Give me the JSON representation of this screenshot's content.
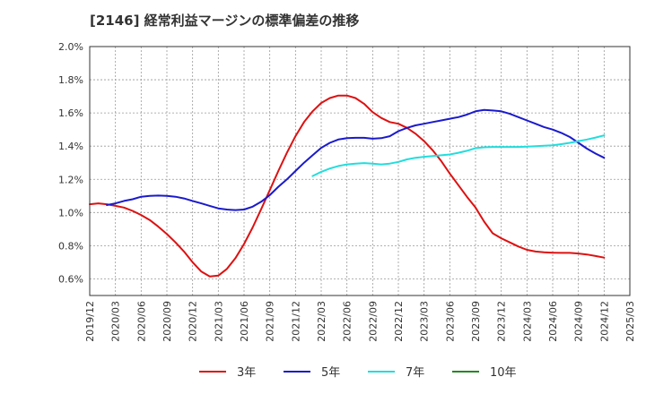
{
  "chart_data": {
    "type": "line",
    "title": "[2146]  経常利益マージンの標準偏差の推移",
    "xlabel": "",
    "ylabel": "",
    "ylim": [
      0.5,
      2.0
    ],
    "y_ticks": [
      "2.0%",
      "1.8%",
      "1.6%",
      "1.4%",
      "1.2%",
      "1.0%",
      "0.8%",
      "0.6%"
    ],
    "y_tick_values": [
      2.0,
      1.8,
      1.6,
      1.4,
      1.2,
      1.0,
      0.8,
      0.6
    ],
    "x_ticks": [
      "2019/12",
      "2020/03",
      "2020/06",
      "2020/09",
      "2020/12",
      "2021/03",
      "2021/06",
      "2021/09",
      "2021/12",
      "2022/03",
      "2022/06",
      "2022/09",
      "2022/12",
      "2023/03",
      "2023/06",
      "2023/09",
      "2023/12",
      "2024/03",
      "2024/06",
      "2024/09",
      "2024/12",
      "2025/03"
    ],
    "grid": true,
    "legend_position": "bottom",
    "series": [
      {
        "name": "3年",
        "color": "#dd1111",
        "points": [
          [
            "2019/12",
            1.05
          ],
          [
            "2020/01",
            1.055
          ],
          [
            "2020/02",
            1.05
          ],
          [
            "2020/03",
            1.04
          ],
          [
            "2020/04",
            1.03
          ],
          [
            "2020/05",
            1.01
          ],
          [
            "2020/06",
            0.985
          ],
          [
            "2020/07",
            0.955
          ],
          [
            "2020/08",
            0.915
          ],
          [
            "2020/09",
            0.87
          ],
          [
            "2020/10",
            0.82
          ],
          [
            "2020/11",
            0.765
          ],
          [
            "2020/12",
            0.7
          ],
          [
            "2021/01",
            0.645
          ],
          [
            "2021/02",
            0.615
          ],
          [
            "2021/03",
            0.62
          ],
          [
            "2021/04",
            0.66
          ],
          [
            "2021/05",
            0.725
          ],
          [
            "2021/06",
            0.81
          ],
          [
            "2021/07",
            0.91
          ],
          [
            "2021/08",
            1.02
          ],
          [
            "2021/09",
            1.135
          ],
          [
            "2021/10",
            1.25
          ],
          [
            "2021/11",
            1.36
          ],
          [
            "2021/12",
            1.46
          ],
          [
            "2022/01",
            1.545
          ],
          [
            "2022/02",
            1.61
          ],
          [
            "2022/03",
            1.66
          ],
          [
            "2022/04",
            1.69
          ],
          [
            "2022/05",
            1.705
          ],
          [
            "2022/06",
            1.705
          ],
          [
            "2022/07",
            1.69
          ],
          [
            "2022/08",
            1.655
          ],
          [
            "2022/09",
            1.605
          ],
          [
            "2022/10",
            1.57
          ],
          [
            "2022/11",
            1.545
          ],
          [
            "2022/12",
            1.535
          ],
          [
            "2023/01",
            1.51
          ],
          [
            "2023/02",
            1.475
          ],
          [
            "2023/03",
            1.43
          ],
          [
            "2023/04",
            1.375
          ],
          [
            "2023/05",
            1.31
          ],
          [
            "2023/06",
            1.235
          ],
          [
            "2023/07",
            1.165
          ],
          [
            "2023/08",
            1.095
          ],
          [
            "2023/09",
            1.03
          ],
          [
            "2023/10",
            0.945
          ],
          [
            "2023/11",
            0.875
          ],
          [
            "2023/12",
            0.845
          ],
          [
            "2024/01",
            0.82
          ],
          [
            "2024/02",
            0.795
          ],
          [
            "2024/03",
            0.775
          ],
          [
            "2024/04",
            0.765
          ],
          [
            "2024/05",
            0.76
          ],
          [
            "2024/06",
            0.758
          ],
          [
            "2024/07",
            0.757
          ],
          [
            "2024/08",
            0.757
          ],
          [
            "2024/09",
            0.753
          ],
          [
            "2024/10",
            0.747
          ],
          [
            "2024/11",
            0.738
          ],
          [
            "2024/12",
            0.728
          ]
        ]
      },
      {
        "name": "5年",
        "color": "#1a1acc",
        "points": [
          [
            "2020/02",
            1.045
          ],
          [
            "2020/03",
            1.055
          ],
          [
            "2020/04",
            1.07
          ],
          [
            "2020/05",
            1.08
          ],
          [
            "2020/06",
            1.095
          ],
          [
            "2020/07",
            1.1
          ],
          [
            "2020/08",
            1.102
          ],
          [
            "2020/09",
            1.1
          ],
          [
            "2020/10",
            1.095
          ],
          [
            "2020/11",
            1.085
          ],
          [
            "2020/12",
            1.07
          ],
          [
            "2021/01",
            1.055
          ],
          [
            "2021/02",
            1.04
          ],
          [
            "2021/03",
            1.025
          ],
          [
            "2021/04",
            1.018
          ],
          [
            "2021/05",
            1.015
          ],
          [
            "2021/06",
            1.018
          ],
          [
            "2021/07",
            1.035
          ],
          [
            "2021/08",
            1.065
          ],
          [
            "2021/09",
            1.105
          ],
          [
            "2021/10",
            1.155
          ],
          [
            "2021/11",
            1.2
          ],
          [
            "2021/12",
            1.25
          ],
          [
            "2022/01",
            1.3
          ],
          [
            "2022/02",
            1.345
          ],
          [
            "2022/03",
            1.39
          ],
          [
            "2022/04",
            1.42
          ],
          [
            "2022/05",
            1.44
          ],
          [
            "2022/06",
            1.448
          ],
          [
            "2022/07",
            1.45
          ],
          [
            "2022/08",
            1.45
          ],
          [
            "2022/09",
            1.445
          ],
          [
            "2022/10",
            1.448
          ],
          [
            "2022/11",
            1.46
          ],
          [
            "2022/12",
            1.49
          ],
          [
            "2023/01",
            1.51
          ],
          [
            "2023/02",
            1.525
          ],
          [
            "2023/03",
            1.535
          ],
          [
            "2023/04",
            1.545
          ],
          [
            "2023/05",
            1.555
          ],
          [
            "2023/06",
            1.565
          ],
          [
            "2023/07",
            1.575
          ],
          [
            "2023/08",
            1.59
          ],
          [
            "2023/09",
            1.61
          ],
          [
            "2023/10",
            1.618
          ],
          [
            "2023/11",
            1.615
          ],
          [
            "2023/12",
            1.61
          ],
          [
            "2024/01",
            1.595
          ],
          [
            "2024/02",
            1.575
          ],
          [
            "2024/03",
            1.555
          ],
          [
            "2024/04",
            1.535
          ],
          [
            "2024/05",
            1.515
          ],
          [
            "2024/06",
            1.5
          ],
          [
            "2024/07",
            1.48
          ],
          [
            "2024/08",
            1.455
          ],
          [
            "2024/09",
            1.42
          ],
          [
            "2024/10",
            1.385
          ],
          [
            "2024/11",
            1.355
          ],
          [
            "2024/12",
            1.33
          ]
        ]
      },
      {
        "name": "7年",
        "color": "#22dddd",
        "points": [
          [
            "2022/02",
            1.22
          ],
          [
            "2022/03",
            1.245
          ],
          [
            "2022/04",
            1.265
          ],
          [
            "2022/05",
            1.28
          ],
          [
            "2022/06",
            1.29
          ],
          [
            "2022/07",
            1.295
          ],
          [
            "2022/08",
            1.298
          ],
          [
            "2022/09",
            1.295
          ],
          [
            "2022/10",
            1.29
          ],
          [
            "2022/11",
            1.295
          ],
          [
            "2022/12",
            1.305
          ],
          [
            "2023/01",
            1.32
          ],
          [
            "2023/02",
            1.33
          ],
          [
            "2023/03",
            1.336
          ],
          [
            "2023/04",
            1.34
          ],
          [
            "2023/05",
            1.345
          ],
          [
            "2023/06",
            1.35
          ],
          [
            "2023/07",
            1.36
          ],
          [
            "2023/08",
            1.372
          ],
          [
            "2023/09",
            1.388
          ],
          [
            "2023/10",
            1.393
          ],
          [
            "2023/11",
            1.395
          ],
          [
            "2023/12",
            1.395
          ],
          [
            "2024/01",
            1.395
          ],
          [
            "2024/02",
            1.395
          ],
          [
            "2024/03",
            1.397
          ],
          [
            "2024/04",
            1.4
          ],
          [
            "2024/05",
            1.402
          ],
          [
            "2024/06",
            1.405
          ],
          [
            "2024/07",
            1.412
          ],
          [
            "2024/08",
            1.42
          ],
          [
            "2024/09",
            1.43
          ],
          [
            "2024/10",
            1.44
          ],
          [
            "2024/11",
            1.452
          ],
          [
            "2024/12",
            1.465
          ]
        ]
      },
      {
        "name": "10年",
        "color": "#228822",
        "points": []
      }
    ]
  }
}
